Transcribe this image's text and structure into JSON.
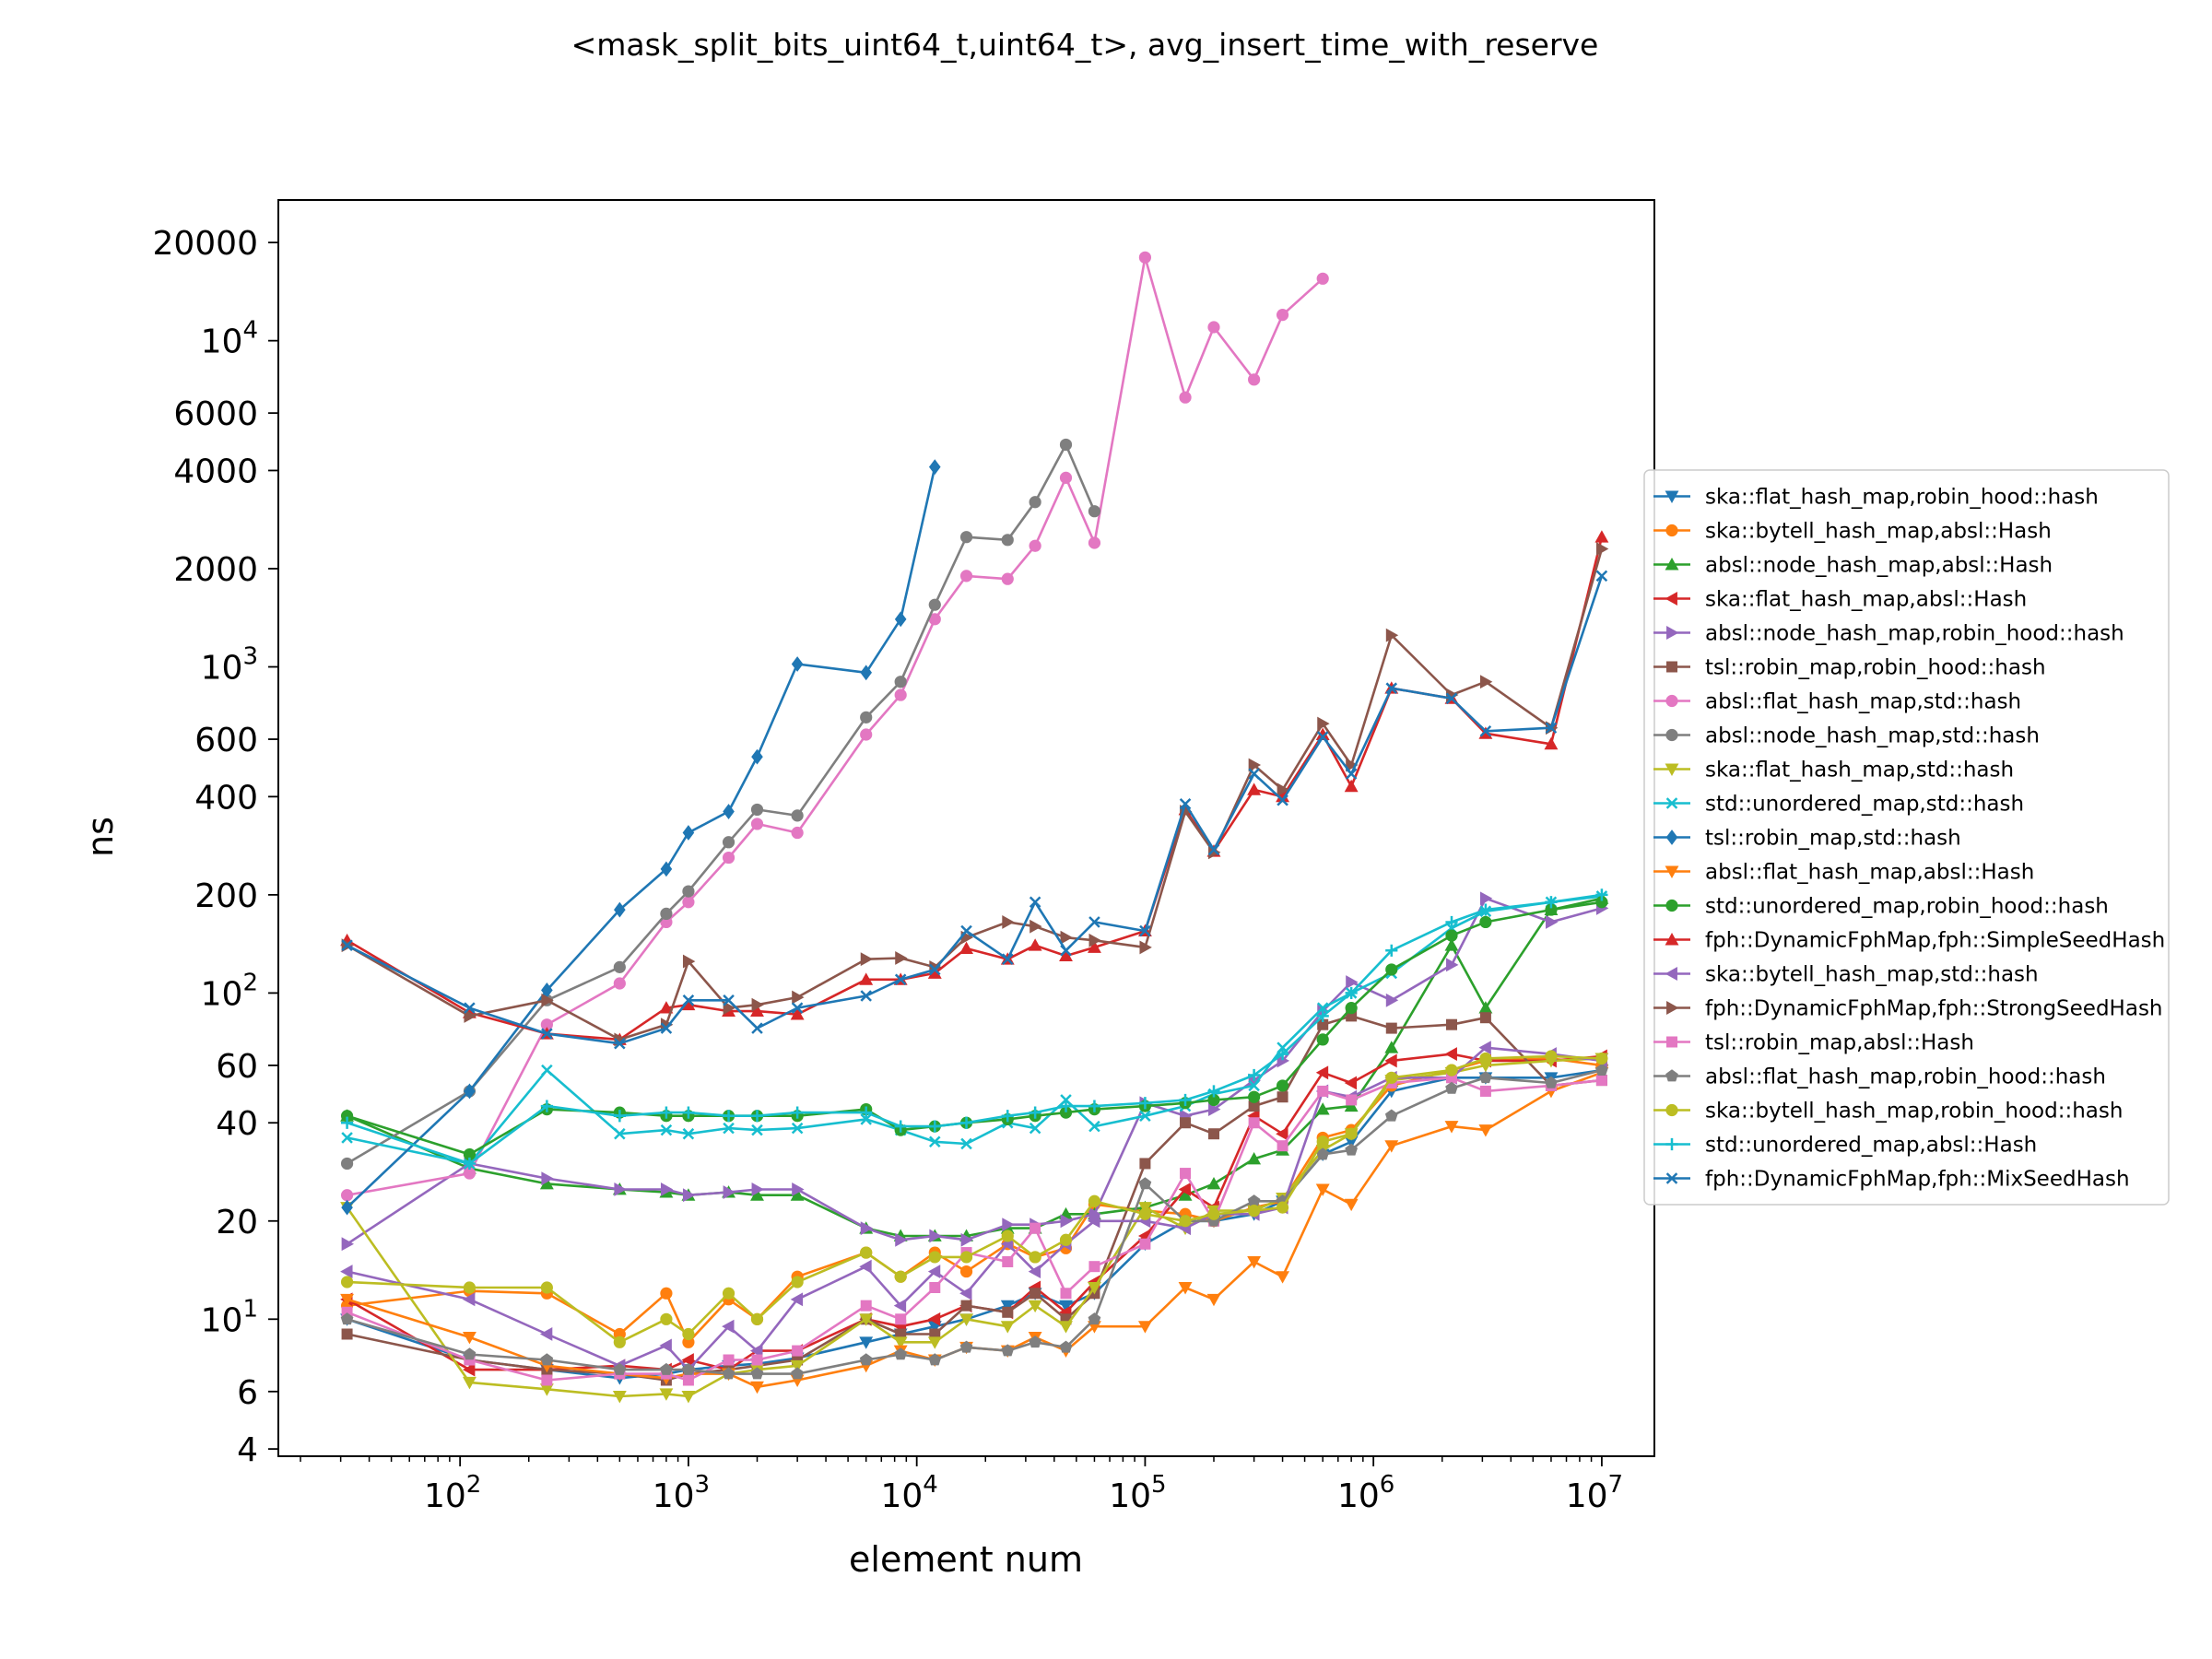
{
  "chart_data": {
    "type": "line",
    "title": "<mask_split_bits_uint64_t,uint64_t>, avg_insert_time_with_reserve",
    "xlabel": "element num",
    "ylabel": "ns",
    "xscale": "log",
    "yscale": "log",
    "xlim": [
      16,
      17000000
    ],
    "ylim": [
      3.8,
      27000
    ],
    "grid": false,
    "legend_position": "right",
    "x_ticks": [
      {
        "value": 100,
        "base": "10",
        "exp": "2"
      },
      {
        "value": 1000,
        "base": "10",
        "exp": "3"
      },
      {
        "value": 10000,
        "base": "10",
        "exp": "4"
      },
      {
        "value": 100000,
        "base": "10",
        "exp": "5"
      },
      {
        "value": 1000000,
        "base": "10",
        "exp": "6"
      },
      {
        "value": 10000000,
        "base": "10",
        "exp": "7"
      }
    ],
    "y_ticks": [
      {
        "value": 4,
        "label": "4"
      },
      {
        "value": 6,
        "label": "6"
      },
      {
        "value": 10,
        "base": "10",
        "exp": "1"
      },
      {
        "value": 20,
        "label": "20"
      },
      {
        "value": 40,
        "label": "40"
      },
      {
        "value": 60,
        "label": "60"
      },
      {
        "value": 100,
        "base": "10",
        "exp": "2"
      },
      {
        "value": 200,
        "label": "200"
      },
      {
        "value": 400,
        "label": "400"
      },
      {
        "value": 600,
        "label": "600"
      },
      {
        "value": 1000,
        "base": "10",
        "exp": "3"
      },
      {
        "value": 2000,
        "label": "2000"
      },
      {
        "value": 4000,
        "label": "4000"
      },
      {
        "value": 6000,
        "label": "6000"
      },
      {
        "value": 10000,
        "base": "10",
        "exp": "4"
      },
      {
        "value": 20000,
        "label": "20000"
      }
    ],
    "x": [
      32,
      110,
      240,
      500,
      800,
      1000,
      1500,
      2000,
      3000,
      6000,
      8500,
      12000,
      16500,
      25000,
      33000,
      45000,
      60000,
      100000,
      150000,
      200000,
      300000,
      400000,
      600000,
      800000,
      1200000,
      2200000,
      3100000,
      6000000,
      10000000
    ],
    "series": [
      {
        "name": "ska::flat_hash_map,robin_hood::hash",
        "color": "#1f77b4",
        "marker": "tri_down",
        "values": [
          10,
          7.5,
          7.0,
          6.6,
          6.8,
          7.0,
          7.2,
          7.3,
          7.6,
          8.5,
          9.0,
          9.5,
          10.0,
          11.0,
          12.0,
          11.0,
          12.0,
          17.0,
          20.0,
          20.0,
          21.0,
          23.0,
          32.0,
          35.0,
          50.0,
          55.0,
          55.0,
          55.0,
          58.0
        ]
      },
      {
        "name": "ska::bytell_hash_map,absl::Hash",
        "color": "#ff7f0e",
        "marker": "circle",
        "values": [
          11.0,
          12.2,
          12.0,
          9.0,
          12.0,
          8.5,
          11.5,
          10.0,
          13.5,
          16.0,
          13.5,
          16.0,
          14.0,
          17.0,
          15.5,
          16.5,
          22.5,
          21.5,
          21.0,
          20.0,
          22.0,
          23.0,
          36.0,
          38.0,
          52.0,
          58.0,
          62.0,
          63.0,
          60.0
        ]
      },
      {
        "name": "absl::node_hash_map,absl::Hash",
        "color": "#2ca02c",
        "marker": "tri_up",
        "values": [
          42,
          29,
          26,
          25,
          24.5,
          24,
          24.5,
          24,
          24,
          19,
          18,
          18,
          18,
          19,
          19,
          21,
          21,
          22,
          24,
          26,
          31,
          33,
          44,
          45,
          68,
          140,
          90,
          180,
          195
        ]
      },
      {
        "name": "ska::flat_hash_map,absl::Hash",
        "color": "#d62728",
        "marker": "tri_left",
        "values": [
          11.5,
          7.0,
          7.0,
          7.2,
          7.0,
          7.5,
          7.0,
          8.0,
          8.0,
          10.0,
          9.5,
          10.0,
          11.0,
          10.5,
          12.5,
          10.5,
          13.0,
          18.0,
          25.0,
          22.0,
          42.0,
          37.0,
          57.0,
          53.0,
          62.0,
          65.0,
          62.0,
          62.0,
          64.0
        ]
      },
      {
        "name": "absl::node_hash_map,robin_hood::hash",
        "color": "#9467bd",
        "marker": "tri_right",
        "values": [
          17,
          30,
          27,
          25,
          25,
          24,
          24.5,
          25,
          25,
          19,
          17.5,
          18,
          17.5,
          19.5,
          19.5,
          20,
          21,
          46,
          42,
          44,
          54,
          62,
          88,
          108,
          95,
          122,
          195,
          165,
          182
        ]
      },
      {
        "name": "tsl::robin_map,robin_hood::hash",
        "color": "#8c564b",
        "marker": "square",
        "values": [
          9.0,
          7.5,
          7.0,
          6.8,
          6.5,
          6.8,
          7.0,
          7.2,
          7.5,
          10.0,
          9.0,
          9.0,
          11.0,
          10.5,
          12.0,
          10.0,
          12.0,
          30.0,
          40.0,
          37.0,
          45.0,
          48.0,
          80.0,
          85.0,
          78.0,
          80.0,
          84.0,
          52.0,
          54.0
        ]
      },
      {
        "name": "absl::flat_hash_map,std::hash",
        "color": "#e377c2",
        "marker": "circle",
        "values": [
          24,
          28,
          80,
          107,
          165,
          190,
          260,
          330,
          310,
          620,
          820,
          1400,
          1900,
          1860,
          2350,
          3800,
          2400,
          18000,
          6700,
          11000,
          7600,
          12000,
          15500,
          null,
          null,
          null,
          null,
          null,
          null
        ]
      },
      {
        "name": "absl::node_hash_map,std::hash",
        "color": "#7f7f7f",
        "marker": "circle",
        "values": [
          30,
          50,
          95,
          120,
          175,
          205,
          290,
          365,
          350,
          700,
          900,
          1550,
          2500,
          2450,
          3200,
          4800,
          3000,
          null,
          null,
          null,
          null,
          null,
          null,
          null,
          null,
          null,
          null,
          null,
          null
        ]
      },
      {
        "name": "ska::flat_hash_map,std::hash",
        "color": "#bcbd22",
        "marker": "tri_down",
        "values": [
          22,
          6.4,
          6.1,
          5.8,
          5.9,
          5.8,
          6.8,
          7.0,
          7.2,
          10.0,
          8.5,
          8.5,
          10.0,
          9.5,
          11.0,
          9.5,
          12.5,
          22.0,
          19.0,
          21.5,
          21.5,
          23.5,
          33.0,
          37.0,
          54.0,
          57.0,
          60.0,
          62.0,
          63.0
        ]
      },
      {
        "name": "std::unordered_map,std::hash",
        "color": "#17becf",
        "marker": "x",
        "values": [
          36,
          30,
          58,
          37,
          38,
          37,
          38.5,
          38,
          38.5,
          41,
          38,
          35,
          34.5,
          40,
          38.5,
          47,
          39,
          42,
          45,
          49,
          52,
          68,
          90,
          100,
          115,
          158,
          178,
          190,
          198
        ]
      },
      {
        "name": "tsl::robin_map,std::hash",
        "color": "#1f77b4",
        "marker": "diamond",
        "values": [
          22,
          50,
          102,
          180,
          240,
          310,
          360,
          530,
          1020,
          960,
          1400,
          4100,
          null,
          null,
          null,
          null,
          null,
          null,
          null,
          null,
          null,
          null,
          null,
          null,
          null,
          null,
          null,
          null,
          null
        ]
      },
      {
        "name": "absl::flat_hash_map,absl::Hash",
        "color": "#ff7f0e",
        "marker": "tri_down",
        "values": [
          11.5,
          8.8,
          7.2,
          6.8,
          6.6,
          6.8,
          6.8,
          6.2,
          6.5,
          7.2,
          8.0,
          7.5,
          8.2,
          8.0,
          8.8,
          8.0,
          9.5,
          9.5,
          12.5,
          11.5,
          15.0,
          13.5,
          25.0,
          22.5,
          34.0,
          39.0,
          38.0,
          50.0,
          57.0
        ]
      },
      {
        "name": "std::unordered_map,robin_hood::hash",
        "color": "#2ca02c",
        "marker": "circle",
        "values": [
          42,
          32,
          44,
          43,
          42,
          42,
          42,
          42,
          42,
          44,
          38,
          39,
          40,
          41,
          42,
          43,
          44,
          45,
          46,
          47,
          48,
          52,
          72,
          90,
          118,
          150,
          165,
          180,
          190
        ]
      },
      {
        "name": "fph::DynamicFphMap,fph::SimpleSeedHash",
        "color": "#d62728",
        "marker": "tri_up",
        "values": [
          145,
          87,
          75,
          72,
          90,
          92,
          88,
          88,
          86,
          110,
          110,
          115,
          137,
          127,
          140,
          130,
          138,
          155,
          365,
          272,
          420,
          400,
          620,
          430,
          860,
          800,
          625,
          580,
          2500
        ]
      },
      {
        "name": "ska::bytell_hash_map,std::hash",
        "color": "#9467bd",
        "marker": "tri_left",
        "values": [
          14,
          11.5,
          9.0,
          7.2,
          8.3,
          7.0,
          9.5,
          8.0,
          11.5,
          14.5,
          11.0,
          14.0,
          12.0,
          17.0,
          14.0,
          17.0,
          20.0,
          20.0,
          19.0,
          21.0,
          21.0,
          22.0,
          50.0,
          48.0,
          55.0,
          55.0,
          68.0,
          65.0,
          62.0
        ]
      },
      {
        "name": "fph::DynamicFphMap,fph::StrongSeedHash",
        "color": "#8c564b",
        "marker": "tri_right",
        "values": [
          140,
          85,
          95,
          72,
          80,
          125,
          90,
          92,
          97,
          127,
          128,
          120,
          148,
          165,
          160,
          148,
          145,
          138,
          360,
          270,
          500,
          420,
          670,
          500,
          1250,
          820,
          900,
          650,
          2300
        ]
      },
      {
        "name": "tsl::robin_map,absl::Hash",
        "color": "#e377c2",
        "marker": "square",
        "values": [
          10.5,
          7.5,
          6.5,
          6.8,
          6.8,
          6.5,
          7.5,
          7.5,
          8.0,
          11.0,
          10.0,
          12.5,
          16.0,
          15.0,
          19.0,
          12.0,
          14.5,
          17.0,
          28.0,
          20.0,
          40.0,
          34.0,
          50.0,
          47.0,
          53.0,
          55.0,
          50.0,
          52.0,
          54.0
        ]
      },
      {
        "name": "absl::flat_hash_map,robin_hood::hash",
        "color": "#7f7f7f",
        "marker": "pentagon",
        "values": [
          10.0,
          7.8,
          7.5,
          7.0,
          7.0,
          7.0,
          6.8,
          6.8,
          6.8,
          7.5,
          7.8,
          7.5,
          8.2,
          8.0,
          8.5,
          8.2,
          10.0,
          26.0,
          20.0,
          20.0,
          23.0,
          23.0,
          32.0,
          33.0,
          42.0,
          51.0,
          55.0,
          53.0,
          58.0
        ]
      },
      {
        "name": "ska::bytell_hash_map,robin_hood::hash",
        "color": "#bcbd22",
        "marker": "circle",
        "values": [
          13.0,
          12.5,
          12.5,
          8.5,
          10.0,
          9.0,
          12.0,
          10.0,
          13.0,
          16.0,
          13.5,
          15.5,
          15.5,
          18.0,
          15.5,
          17.5,
          23.0,
          21.0,
          20.0,
          21.0,
          21.5,
          22.0,
          35.0,
          37.0,
          55.0,
          58.0,
          63.0,
          64.0,
          63.0
        ]
      },
      {
        "name": "std::unordered_map,absl::Hash",
        "color": "#17becf",
        "marker": "plus",
        "values": [
          40,
          30,
          45,
          42,
          43,
          43,
          42,
          42,
          43,
          43,
          39,
          39,
          40,
          42,
          43,
          45,
          45,
          46,
          47,
          50,
          56,
          65,
          85,
          100,
          135,
          165,
          180,
          190,
          200
        ]
      },
      {
        "name": "fph::DynamicFphMap,fph::MixSeedHash",
        "color": "#1f77b4",
        "marker": "x",
        "values": [
          140,
          90,
          75,
          70,
          78,
          95,
          95,
          78,
          90,
          98,
          110,
          118,
          155,
          127,
          190,
          135,
          165,
          155,
          380,
          275,
          470,
          390,
          610,
          470,
          860,
          800,
          635,
          650,
          1900
        ]
      }
    ]
  }
}
